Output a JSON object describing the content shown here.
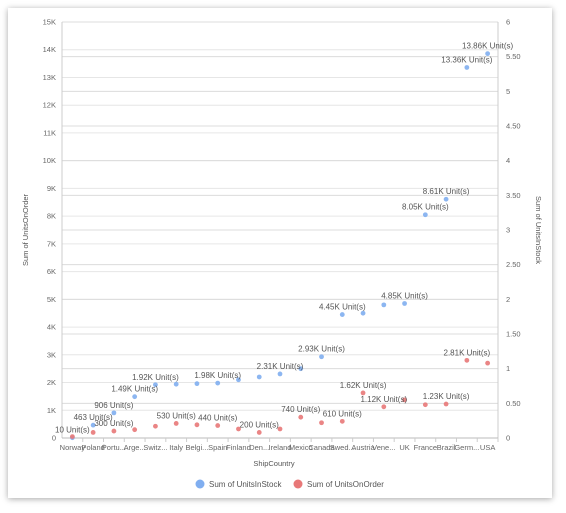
{
  "chart_data": {
    "type": "scatter",
    "xlabel": "ShipCountry",
    "ylabel": "Sum of UnitsOnOrder",
    "y2label": "Sum of UnitsInStock",
    "categories": [
      "Norway",
      "Poland",
      "Portu...",
      "Arge...",
      "Switz...",
      "Italy",
      "Belgi...",
      "Spain",
      "Finland",
      "Den...",
      "Ireland",
      "Mexico",
      "Canada",
      "Swed...",
      "Austria",
      "Vene...",
      "UK",
      "France",
      "Brazil",
      "Germ...",
      "USA"
    ],
    "ylim": [
      0,
      15000
    ],
    "yticks": [
      "0",
      "1K",
      "2K",
      "3K",
      "4K",
      "5K",
      "6K",
      "7K",
      "8K",
      "9K",
      "10K",
      "11K",
      "12K",
      "13K",
      "14K",
      "15K"
    ],
    "y2lim": [
      0,
      6
    ],
    "y2ticks": [
      "0",
      "0.50",
      "1",
      "1.50",
      "2",
      "2.50",
      "3",
      "3.50",
      "4",
      "4.50",
      "5",
      "5.50",
      "6"
    ],
    "series": [
      {
        "name": "Sum of UnitsInStock",
        "color": "#80aef0",
        "values": [
          {
            "cat": 0,
            "y": 10,
            "label": "10 Unit(s)"
          },
          {
            "cat": 1,
            "y": 463,
            "label": "463 Unit(s)"
          },
          {
            "cat": 2,
            "y": 906,
            "label": "906 Unit(s)"
          },
          {
            "cat": 3,
            "y": 1490,
            "label": "1.49K Unit(s)"
          },
          {
            "cat": 4,
            "y": 1920,
            "label": "1.92K Unit(s)"
          },
          {
            "cat": 5,
            "y": 1940,
            "label": ""
          },
          {
            "cat": 6,
            "y": 1960,
            "label": ""
          },
          {
            "cat": 7,
            "y": 1980,
            "label": "1.98K Unit(s)"
          },
          {
            "cat": 8,
            "y": 2100,
            "label": ""
          },
          {
            "cat": 9,
            "y": 2200,
            "label": ""
          },
          {
            "cat": 10,
            "y": 2310,
            "label": "2.31K Unit(s)"
          },
          {
            "cat": 11,
            "y": 2500,
            "label": ""
          },
          {
            "cat": 12,
            "y": 2930,
            "label": "2.93K Unit(s)"
          },
          {
            "cat": 13,
            "y": 4450,
            "label": "4.45K Unit(s)"
          },
          {
            "cat": 14,
            "y": 4500,
            "label": ""
          },
          {
            "cat": 15,
            "y": 4800,
            "label": ""
          },
          {
            "cat": 16,
            "y": 4850,
            "label": "4.85K Unit(s)"
          },
          {
            "cat": 17,
            "y": 8050,
            "label": "8.05K Unit(s)"
          },
          {
            "cat": 18,
            "y": 8610,
            "label": "8.61K Unit(s)"
          },
          {
            "cat": 19,
            "y": 13360,
            "label": "13.36K Unit(s)"
          },
          {
            "cat": 20,
            "y": 13860,
            "label": "13.86K Unit(s)"
          }
        ]
      },
      {
        "name": "Sum of UnitsOnOrder",
        "color": "#e87878",
        "values": [
          {
            "cat": 0,
            "y": 0.02,
            "label": ""
          },
          {
            "cat": 1,
            "y": 0.08,
            "label": ""
          },
          {
            "cat": 2,
            "y": 0.1,
            "label": "300 Unit(s)"
          },
          {
            "cat": 3,
            "y": 0.12,
            "label": ""
          },
          {
            "cat": 4,
            "y": 0.17,
            "label": ""
          },
          {
            "cat": 5,
            "y": 0.21,
            "label": "530 Unit(s)"
          },
          {
            "cat": 6,
            "y": 0.19,
            "label": ""
          },
          {
            "cat": 7,
            "y": 0.18,
            "label": "440 Unit(s)"
          },
          {
            "cat": 8,
            "y": 0.13,
            "label": ""
          },
          {
            "cat": 9,
            "y": 0.08,
            "label": "200 Unit(s)"
          },
          {
            "cat": 10,
            "y": 0.13,
            "label": ""
          },
          {
            "cat": 11,
            "y": 0.3,
            "label": "740 Unit(s)"
          },
          {
            "cat": 12,
            "y": 0.22,
            "label": ""
          },
          {
            "cat": 13,
            "y": 0.24,
            "label": "610 Unit(s)"
          },
          {
            "cat": 14,
            "y": 0.65,
            "label": "1.62K Unit(s)"
          },
          {
            "cat": 15,
            "y": 0.45,
            "label": "1.12K Unit(s)"
          },
          {
            "cat": 16,
            "y": 0.55,
            "label": ""
          },
          {
            "cat": 17,
            "y": 0.48,
            "label": ""
          },
          {
            "cat": 18,
            "y": 0.49,
            "label": "1.23K Unit(s)"
          },
          {
            "cat": 19,
            "y": 1.12,
            "label": "2.81K Unit(s)"
          },
          {
            "cat": 20,
            "y": 1.08,
            "label": ""
          }
        ]
      }
    ],
    "legend": {
      "position": "bottom"
    },
    "grid": true
  }
}
